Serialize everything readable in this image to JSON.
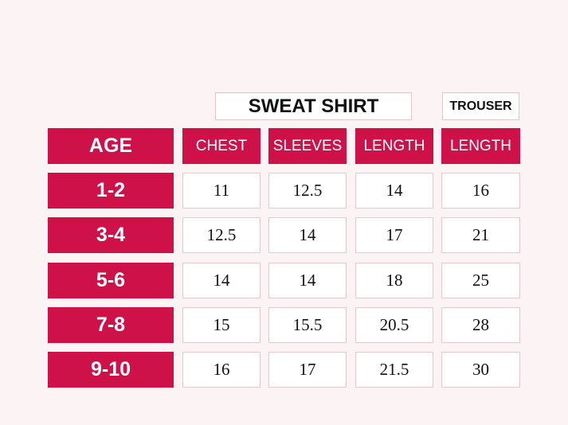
{
  "table": {
    "groups": [
      "SWEAT SHIRT",
      "TROUSER"
    ],
    "columns": [
      "AGE",
      "CHEST",
      "SLEEVES",
      "LENGTH",
      "LENGTH"
    ],
    "rows": [
      [
        "1-2",
        11,
        12.5,
        14,
        16
      ],
      [
        "3-4",
        12.5,
        14,
        17,
        21
      ],
      [
        "5-6",
        14,
        14,
        18,
        25
      ],
      [
        "7-8",
        15,
        15.5,
        20.5,
        28
      ],
      [
        "9-10",
        16,
        17,
        21.5,
        30
      ]
    ]
  }
}
